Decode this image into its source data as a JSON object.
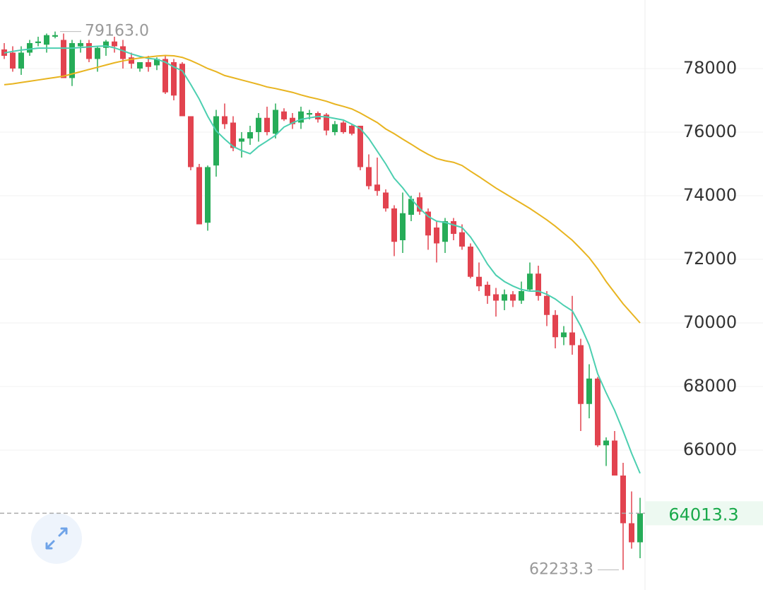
{
  "chart_data": {
    "type": "candlestick",
    "open": [
      78600,
      78500,
      78000,
      78500,
      78800,
      78750,
      79000,
      78900,
      77700,
      78700,
      78800,
      78300,
      78650,
      78850,
      78700,
      78350,
      78000,
      78200,
      78100,
      78300,
      78200,
      78150,
      76500,
      74900,
      73150,
      74950,
      76500,
      76300,
      75700,
      75800,
      76000,
      76450,
      75950,
      76650,
      76450,
      76300,
      76550,
      76600,
      76550,
      76000,
      76300,
      76200,
      76200,
      74900,
      74350,
      74100,
      73600,
      72600,
      73400,
      73950,
      73500,
      73000,
      72550,
      73200,
      72850,
      72400,
      71450,
      71200,
      70900,
      70700,
      70900,
      70700,
      71050,
      71550,
      70850,
      70250,
      69550,
      69700,
      69300,
      67450,
      68250,
      66150,
      66300,
      65200,
      63700,
      63100
    ],
    "high": [
      78800,
      78700,
      78700,
      78900,
      79000,
      79100,
      79163,
      79100,
      78900,
      78900,
      78900,
      78700,
      78900,
      79000,
      78900,
      78500,
      78200,
      78400,
      78350,
      78400,
      78300,
      78200,
      76500,
      75000,
      74950,
      76700,
      76900,
      76500,
      76000,
      76200,
      76600,
      76800,
      76900,
      76750,
      76600,
      76800,
      76700,
      76650,
      76600,
      76350,
      76350,
      76250,
      76200,
      75300,
      75200,
      74200,
      73700,
      74100,
      74000,
      74100,
      73600,
      73200,
      73300,
      73300,
      73100,
      72500,
      71900,
      71300,
      71100,
      71050,
      71000,
      71300,
      71900,
      71800,
      71000,
      70400,
      69900,
      70850,
      69500,
      68700,
      68300,
      66400,
      66600,
      65600,
      64700,
      64500
    ],
    "low": [
      78300,
      77900,
      77800,
      78400,
      78700,
      78500,
      78950,
      77700,
      77450,
      78500,
      78200,
      77900,
      78400,
      78500,
      78000,
      78000,
      77900,
      77900,
      77950,
      77200,
      77000,
      76500,
      74800,
      73100,
      72900,
      74600,
      76100,
      75400,
      75200,
      75600,
      75700,
      75900,
      75800,
      76350,
      76100,
      76100,
      76400,
      76300,
      75900,
      75900,
      75950,
      75900,
      74800,
      74200,
      74000,
      73500,
      72100,
      72200,
      73200,
      73400,
      72300,
      71900,
      72200,
      72600,
      72300,
      71400,
      71000,
      70600,
      70200,
      70400,
      70500,
      70600,
      71000,
      70700,
      69900,
      69200,
      69300,
      69000,
      66600,
      67000,
      66100,
      65500,
      65200,
      62233.3,
      62900,
      62600
    ],
    "close": [
      78400,
      78000,
      78500,
      78800,
      78850,
      79050,
      79050,
      77700,
      78800,
      78800,
      78300,
      78650,
      78850,
      78700,
      78300,
      78150,
      78200,
      78050,
      78300,
      77250,
      77150,
      76500,
      74900,
      73100,
      74900,
      76500,
      76250,
      75500,
      75800,
      76000,
      76450,
      76000,
      76700,
      76400,
      76250,
      76650,
      76600,
      76400,
      76050,
      76250,
      76000,
      75950,
      74900,
      74300,
      74150,
      73600,
      72550,
      73450,
      73900,
      73500,
      72750,
      72500,
      73200,
      72800,
      72400,
      71450,
      71150,
      70850,
      70700,
      70900,
      70700,
      71000,
      71550,
      70850,
      70250,
      69550,
      69700,
      69300,
      67450,
      68250,
      66150,
      66300,
      65200,
      63700,
      63100,
      64013.3
    ],
    "up_color": "#26ac58",
    "down_color": "#e2434f",
    "lines": [
      {
        "color": "#4ccfb0",
        "values": [
          78490,
          78540,
          78580,
          78610,
          78640,
          78640,
          78640,
          78640,
          78640,
          78660,
          78680,
          78700,
          78710,
          78650,
          78560,
          78460,
          78380,
          78320,
          78290,
          78200,
          78050,
          77930,
          77500,
          77040,
          76500,
          76040,
          75780,
          75550,
          75420,
          75320,
          75550,
          75720,
          75900,
          76160,
          76290,
          76400,
          76450,
          76490,
          76480,
          76430,
          76380,
          76250,
          76110,
          75800,
          75400,
          75000,
          74550,
          74250,
          73900,
          73600,
          73350,
          73200,
          73160,
          73080,
          73000,
          72700,
          72300,
          71850,
          71500,
          71300,
          71160,
          71050,
          71000,
          71000,
          70900,
          70750,
          70550,
          70380,
          69900,
          69300,
          68400,
          67800,
          67250,
          66600,
          65900,
          65270
        ]
      },
      {
        "color": "#e8b420",
        "values": [
          77490,
          77520,
          77560,
          77600,
          77640,
          77680,
          77720,
          77760,
          77830,
          77900,
          77970,
          78040,
          78110,
          78180,
          78240,
          78290,
          78330,
          78360,
          78390,
          78410,
          78400,
          78350,
          78250,
          78130,
          78000,
          77900,
          77780,
          77710,
          77640,
          77570,
          77500,
          77420,
          77370,
          77310,
          77250,
          77170,
          77100,
          77040,
          76970,
          76880,
          76810,
          76730,
          76600,
          76450,
          76300,
          76100,
          75950,
          75780,
          75620,
          75450,
          75300,
          75170,
          75100,
          75050,
          74950,
          74770,
          74600,
          74420,
          74240,
          74080,
          73920,
          73760,
          73600,
          73420,
          73240,
          73040,
          72820,
          72600,
          72330,
          72050,
          71700,
          71300,
          70950,
          70600,
          70300,
          70000
        ]
      }
    ],
    "ylim": [
      61600,
      80155
    ],
    "yticks": [
      66000,
      68000,
      70000,
      72000,
      74000,
      76000,
      78000
    ],
    "grid": true,
    "high_marker": {
      "value": 79163,
      "label": "79163.0"
    },
    "low_marker": 62233.3,
    "last_price": 64013.3
  }
}
